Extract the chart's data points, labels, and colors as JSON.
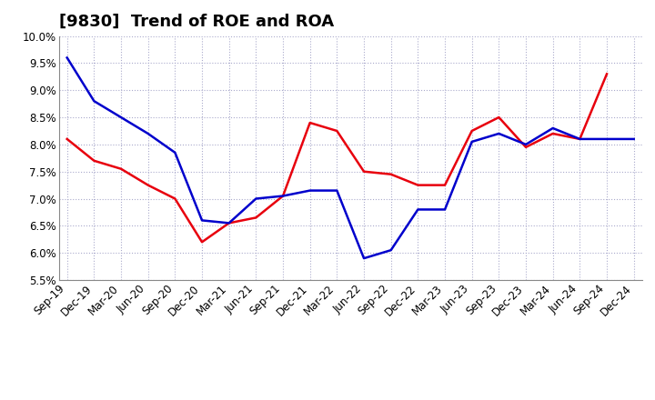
{
  "title": "[9830]  Trend of ROE and ROA",
  "xlabels": [
    "Sep-19",
    "Dec-19",
    "Mar-20",
    "Jun-20",
    "Sep-20",
    "Dec-20",
    "Mar-21",
    "Jun-21",
    "Sep-21",
    "Dec-21",
    "Mar-22",
    "Jun-22",
    "Sep-22",
    "Dec-22",
    "Mar-23",
    "Jun-23",
    "Sep-23",
    "Dec-23",
    "Mar-24",
    "Jun-24",
    "Sep-24",
    "Dec-24"
  ],
  "ROE": [
    8.1,
    7.7,
    7.55,
    7.25,
    7.0,
    6.2,
    6.55,
    6.65,
    7.05,
    8.4,
    8.25,
    7.5,
    7.45,
    7.25,
    7.25,
    8.25,
    8.5,
    7.95,
    8.2,
    8.1,
    9.3,
    null
  ],
  "ROA": [
    9.6,
    8.8,
    8.5,
    8.2,
    7.85,
    6.6,
    6.55,
    7.0,
    7.05,
    7.15,
    7.15,
    5.9,
    6.05,
    6.8,
    6.8,
    8.05,
    8.2,
    8.0,
    8.3,
    8.1,
    8.1,
    8.1
  ],
  "ROE_color": "#e8000d",
  "ROA_color": "#0000cc",
  "ylim": [
    5.5,
    10.0
  ],
  "yticks": [
    5.5,
    6.0,
    6.5,
    7.0,
    7.5,
    8.0,
    8.5,
    9.0,
    9.5,
    10.0
  ],
  "bg_color": "#ffffff",
  "grid_color": "#aaaacc",
  "title_fontsize": 13,
  "legend_fontsize": 10,
  "tick_fontsize": 8.5
}
